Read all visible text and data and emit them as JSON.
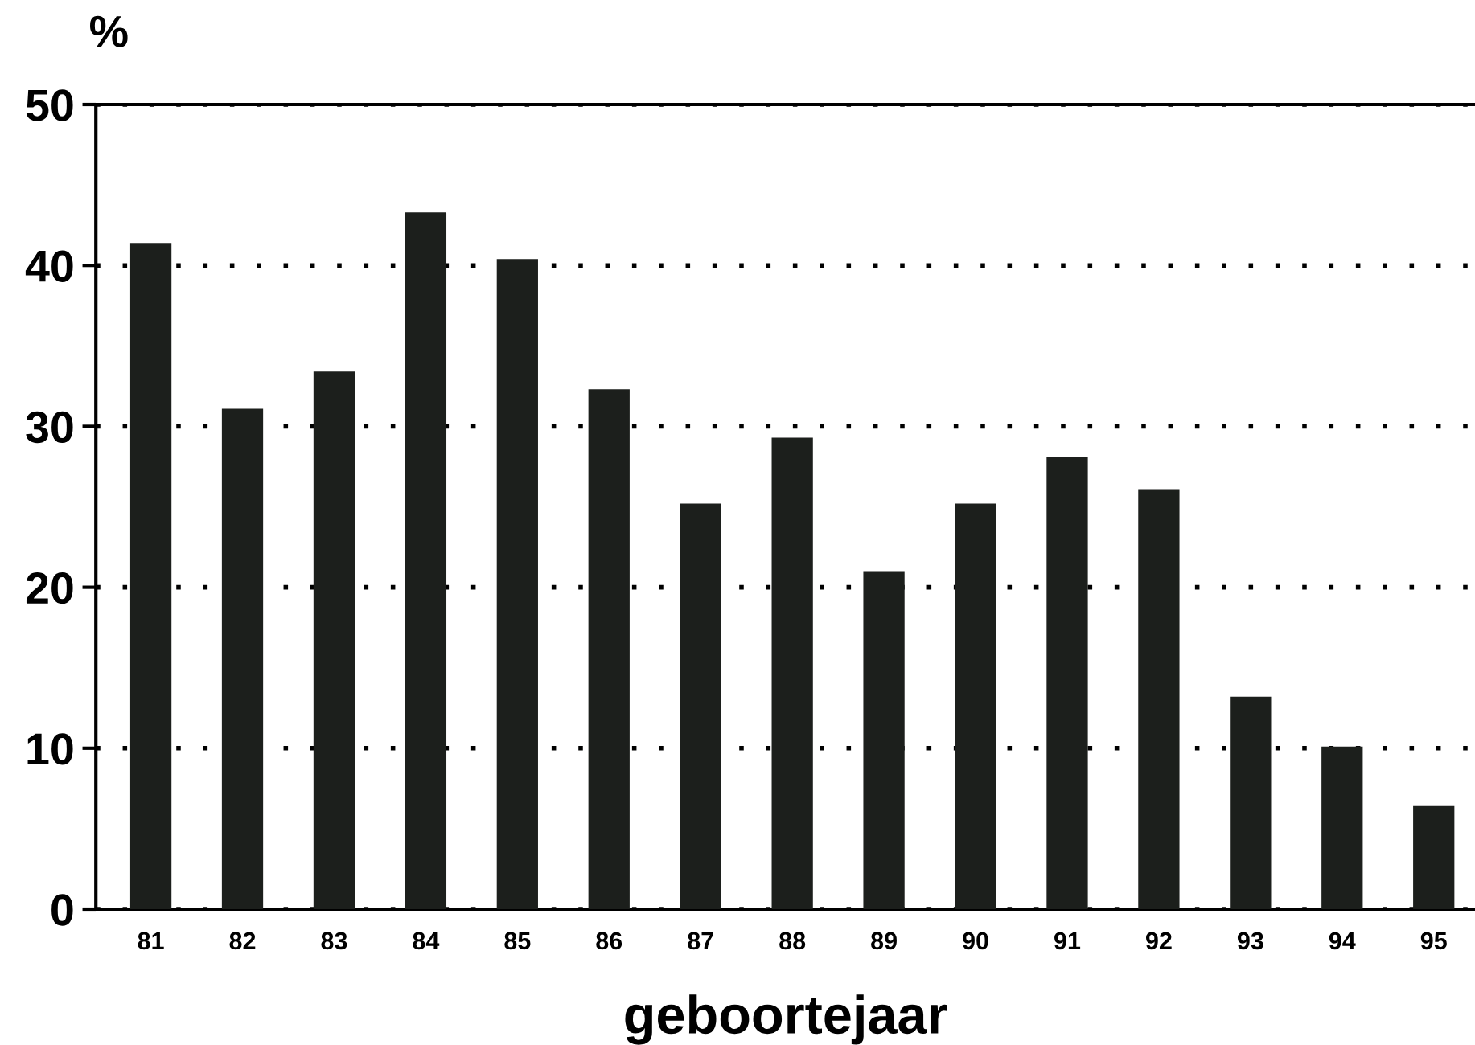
{
  "chart_data": {
    "type": "bar",
    "ylabel": "%",
    "xlabel": "geboortejaar",
    "categories": [
      "81",
      "82",
      "83",
      "84",
      "85",
      "86",
      "87",
      "88",
      "89",
      "90",
      "91",
      "92",
      "93",
      "94",
      "95"
    ],
    "values": [
      41.4,
      31.1,
      33.4,
      43.3,
      40.4,
      32.3,
      25.2,
      29.3,
      21.0,
      25.2,
      28.1,
      26.1,
      13.2,
      10.1,
      6.4
    ],
    "color": "#1c1f1c",
    "ylim": [
      0,
      50
    ],
    "yticks": [
      0,
      10,
      20,
      30,
      40,
      50
    ],
    "grid": "y",
    "line_style": "dotted"
  }
}
